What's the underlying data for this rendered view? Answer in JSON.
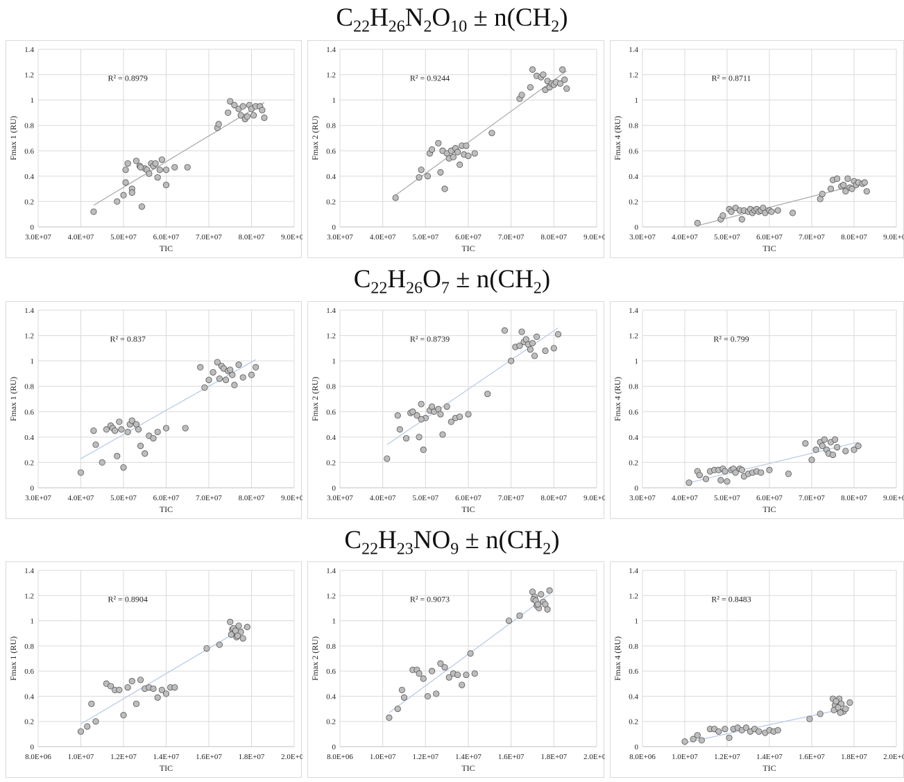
{
  "rows": [
    {
      "formula_parts": [
        "C",
        "22",
        "H",
        "26",
        "N",
        "2",
        "O",
        "10",
        " ± n(CH",
        "2",
        ")"
      ]
    },
    {
      "formula_parts": [
        "C",
        "22",
        "H",
        "26",
        "O",
        "7",
        " ± n(CH",
        "2",
        ")"
      ]
    },
    {
      "formula_parts": [
        "C",
        "22",
        "H",
        "23",
        "NO",
        "9",
        " ± n(CH",
        "2",
        ")"
      ]
    }
  ],
  "chart_data": [
    {
      "type": "scatter",
      "xlabel": "TIC",
      "ylabel": "Fmax 1 (RU)",
      "annotation": "R² = 0.8979",
      "trendline_color": "#a6a6a6",
      "xlim": [
        30000000,
        90000000
      ],
      "ylim": [
        0,
        1.4
      ],
      "xticks": [
        "3.0E+07",
        "4.0E+07",
        "5.0E+07",
        "6.0E+07",
        "7.0E+07",
        "8.0E+07",
        "9.0E+07"
      ],
      "yticks": [
        "0",
        "0.2",
        "0.4",
        "0.6",
        "0.8",
        "1",
        "1.2",
        "1.4"
      ],
      "x": [
        43000000,
        48500000,
        50000000,
        50500000,
        51000000,
        52000000,
        53000000,
        53800000,
        54300000,
        55000000,
        55500000,
        56000000,
        56500000,
        57000000,
        57500000,
        58000000,
        58500000,
        59000000,
        60000000,
        60000000,
        62000000,
        65000000,
        72000000,
        72300000,
        74500000,
        75000000,
        76000000,
        77000000,
        77500000,
        78000000,
        78500000,
        79000000,
        79500000,
        80000000,
        80500000,
        81000000,
        82000000,
        82500000,
        83000000,
        52000000,
        50500000,
        54000000
      ],
      "y": [
        0.12,
        0.2,
        0.25,
        0.45,
        0.5,
        0.3,
        0.52,
        0.48,
        0.16,
        0.46,
        0.45,
        0.42,
        0.5,
        0.48,
        0.5,
        0.39,
        0.45,
        0.53,
        0.33,
        0.45,
        0.47,
        0.47,
        0.78,
        0.81,
        0.9,
        0.99,
        0.96,
        0.93,
        0.88,
        0.95,
        0.85,
        0.87,
        0.96,
        0.93,
        0.88,
        0.95,
        0.95,
        0.92,
        0.86,
        0.27,
        0.35,
        0.47
      ],
      "trend": {
        "x": [
          43000000,
          83000000
        ],
        "y": [
          0.17,
          0.98
        ]
      }
    },
    {
      "type": "scatter",
      "xlabel": "TIC",
      "ylabel": "Fmax 2 (RU)",
      "annotation": "R² = 0.9244",
      "trendline_color": "#a6a6a6",
      "xlim": [
        30000000,
        90000000
      ],
      "ylim": [
        0,
        1.4
      ],
      "xticks": [
        "3.0E+07",
        "4.0E+07",
        "5.0E+07",
        "6.0E+07",
        "7.0E+07",
        "8.0E+07",
        "9.0E+07"
      ],
      "yticks": [
        "0",
        "0.2",
        "0.4",
        "0.6",
        "0.8",
        "1",
        "1.2",
        "1.4"
      ],
      "x": [
        43000000,
        48500000,
        49000000,
        50500000,
        51000000,
        51500000,
        53000000,
        53500000,
        54000000,
        54500000,
        55000000,
        55500000,
        56000000,
        56500000,
        57000000,
        57500000,
        58000000,
        58500000,
        59000000,
        59500000,
        60000000,
        61500000,
        65500000,
        72000000,
        72500000,
        74500000,
        75000000,
        76000000,
        77000000,
        77500000,
        78000000,
        78500000,
        79000000,
        79500000,
        80000000,
        80500000,
        81500000,
        82000000,
        82500000,
        83000000
      ],
      "y": [
        0.23,
        0.39,
        0.45,
        0.4,
        0.58,
        0.61,
        0.66,
        0.43,
        0.6,
        0.3,
        0.58,
        0.54,
        0.6,
        0.55,
        0.62,
        0.59,
        0.49,
        0.64,
        0.57,
        0.64,
        0.56,
        0.58,
        0.74,
        1.01,
        1.04,
        1.1,
        1.24,
        1.19,
        1.18,
        1.2,
        1.08,
        1.15,
        1.1,
        1.13,
        1.12,
        1.14,
        1.13,
        1.24,
        1.16,
        1.09
      ],
      "trend": {
        "x": [
          43000000,
          83000000
        ],
        "y": [
          0.25,
          1.23
        ]
      }
    },
    {
      "type": "scatter",
      "xlabel": "TIC",
      "ylabel": "Fmax 4 (RU)",
      "annotation": "R² = 0.8711",
      "trendline_color": "#a6a6a6",
      "xlim": [
        30000000,
        90000000
      ],
      "ylim": [
        0,
        1.4
      ],
      "xticks": [
        "3.0E+07",
        "4.0E+07",
        "5.0E+07",
        "6.0E+07",
        "7.0E+07",
        "8.0E+07",
        "9.0E+07"
      ],
      "yticks": [
        "0",
        "0.2",
        "0.4",
        "0.6",
        "0.8",
        "1",
        "1.2",
        "1.4"
      ],
      "x": [
        43000000,
        48500000,
        49000000,
        50500000,
        51000000,
        52000000,
        53000000,
        53500000,
        54000000,
        55000000,
        55500000,
        56000000,
        56500000,
        57000000,
        57500000,
        58000000,
        58500000,
        59000000,
        60000000,
        60500000,
        62000000,
        65500000,
        72000000,
        72500000,
        74500000,
        75000000,
        76000000,
        77000000,
        77500000,
        78000000,
        78500000,
        79000000,
        79500000,
        80000000,
        80500000,
        81000000,
        82000000,
        82500000,
        83000000
      ],
      "y": [
        0.03,
        0.06,
        0.09,
        0.14,
        0.12,
        0.15,
        0.13,
        0.06,
        0.13,
        0.12,
        0.14,
        0.11,
        0.13,
        0.14,
        0.12,
        0.13,
        0.15,
        0.11,
        0.13,
        0.12,
        0.13,
        0.11,
        0.22,
        0.26,
        0.3,
        0.37,
        0.38,
        0.32,
        0.33,
        0.28,
        0.38,
        0.31,
        0.3,
        0.36,
        0.33,
        0.35,
        0.34,
        0.35,
        0.28
      ],
      "trend": {
        "x": [
          43000000,
          83000000
        ],
        "y": [
          0.01,
          0.35
        ]
      }
    },
    {
      "type": "scatter",
      "xlabel": "TIC",
      "ylabel": "Fmax 1 (RU)",
      "annotation": "R² = 0.837",
      "trendline_color": "#b4c7e7",
      "xlim": [
        30000000,
        90000000
      ],
      "ylim": [
        0,
        1.4
      ],
      "xticks": [
        "3.0E+07",
        "4.0E+07",
        "5.0E+07",
        "6.0E+07",
        "7.0E+07",
        "8.0E+07",
        "9.0E+07"
      ],
      "yticks": [
        "0",
        "0.2",
        "0.4",
        "0.6",
        "0.8",
        "1",
        "1.2",
        "1.4"
      ],
      "x": [
        40000000,
        43000000,
        43500000,
        45000000,
        46000000,
        47000000,
        47500000,
        48000000,
        48500000,
        49000000,
        49500000,
        50000000,
        51000000,
        51500000,
        52000000,
        53000000,
        53500000,
        54000000,
        55000000,
        56000000,
        57000000,
        58000000,
        60000000,
        64500000,
        68000000,
        69000000,
        70000000,
        71000000,
        72000000,
        72500000,
        73000000,
        73500000,
        74000000,
        74500000,
        75000000,
        75500000,
        76000000,
        77000000,
        78000000,
        80000000,
        81000000
      ],
      "y": [
        0.12,
        0.45,
        0.34,
        0.2,
        0.46,
        0.49,
        0.47,
        0.45,
        0.25,
        0.52,
        0.46,
        0.16,
        0.44,
        0.5,
        0.53,
        0.5,
        0.46,
        0.33,
        0.27,
        0.41,
        0.39,
        0.44,
        0.47,
        0.47,
        0.95,
        0.79,
        0.85,
        0.91,
        0.99,
        0.86,
        0.96,
        0.94,
        0.85,
        0.92,
        0.93,
        0.89,
        0.81,
        0.97,
        0.87,
        0.89,
        0.95
      ],
      "trend": {
        "x": [
          40000000,
          81000000
        ],
        "y": [
          0.23,
          1.01
        ]
      }
    },
    {
      "type": "scatter",
      "xlabel": "TIC",
      "ylabel": "Fmax 2 (RU)",
      "annotation": "R² = 0.8739",
      "trendline_color": "#b4c7e7",
      "xlim": [
        30000000,
        90000000
      ],
      "ylim": [
        0,
        1.4
      ],
      "xticks": [
        "3.0E+07",
        "4.0E+07",
        "5.0E+07",
        "6.0E+07",
        "7.0E+07",
        "8.0E+07",
        "9.0E+07"
      ],
      "yticks": [
        "0",
        "0.2",
        "0.4",
        "0.6",
        "0.8",
        "1",
        "1.2",
        "1.4"
      ],
      "x": [
        41000000,
        43500000,
        44000000,
        45500000,
        46500000,
        47000000,
        48000000,
        48500000,
        49000000,
        49500000,
        50000000,
        51000000,
        51500000,
        52000000,
        53000000,
        53500000,
        54000000,
        55000000,
        56000000,
        57000000,
        58000000,
        60000000,
        64500000,
        68500000,
        70000000,
        71000000,
        72000000,
        72500000,
        73000000,
        73500000,
        74000000,
        74500000,
        75000000,
        75500000,
        76000000,
        78000000,
        80000000,
        81000000,
        49000000
      ],
      "y": [
        0.23,
        0.57,
        0.46,
        0.39,
        0.59,
        0.6,
        0.57,
        0.4,
        0.66,
        0.3,
        0.55,
        0.61,
        0.64,
        0.6,
        0.62,
        0.58,
        0.42,
        0.64,
        0.52,
        0.55,
        0.56,
        0.58,
        0.74,
        1.24,
        1.0,
        1.11,
        1.12,
        1.23,
        1.15,
        1.17,
        1.13,
        1.09,
        1.14,
        1.04,
        1.19,
        1.08,
        1.1,
        1.21,
        0.54
      ],
      "trend": {
        "x": [
          41000000,
          81000000
        ],
        "y": [
          0.34,
          1.26
        ]
      }
    },
    {
      "type": "scatter",
      "xlabel": "TIC",
      "ylabel": "Fmax 4 (RU)",
      "annotation": "R² = 0.799",
      "trendline_color": "#b4c7e7",
      "xlim": [
        30000000,
        90000000
      ],
      "ylim": [
        0,
        1.4
      ],
      "xticks": [
        "3.0E+07",
        "4.0E+07",
        "5.0E+07",
        "6.0E+07",
        "7.0E+07",
        "8.0E+07",
        "9.0E+07"
      ],
      "yticks": [
        "0",
        "0.2",
        "0.4",
        "0.6",
        "0.8",
        "1",
        "1.2",
        "1.4"
      ],
      "x": [
        41000000,
        43000000,
        43500000,
        45000000,
        46000000,
        47000000,
        48000000,
        48500000,
        49000000,
        49500000,
        50000000,
        51000000,
        51500000,
        52000000,
        53000000,
        53500000,
        54000000,
        55000000,
        56000000,
        57000000,
        58000000,
        60000000,
        64500000,
        68500000,
        70000000,
        71000000,
        72000000,
        72500000,
        73000000,
        73500000,
        74000000,
        74500000,
        75000000,
        75500000,
        76000000,
        78000000,
        80000000,
        81000000
      ],
      "y": [
        0.04,
        0.13,
        0.1,
        0.07,
        0.13,
        0.14,
        0.14,
        0.06,
        0.15,
        0.13,
        0.05,
        0.14,
        0.15,
        0.12,
        0.15,
        0.14,
        0.09,
        0.11,
        0.12,
        0.13,
        0.12,
        0.14,
        0.11,
        0.35,
        0.22,
        0.3,
        0.36,
        0.33,
        0.38,
        0.3,
        0.27,
        0.36,
        0.26,
        0.38,
        0.32,
        0.29,
        0.3,
        0.33
      ],
      "trend": {
        "x": [
          41000000,
          81000000
        ],
        "y": [
          0.04,
          0.36
        ]
      }
    },
    {
      "type": "scatter",
      "xlabel": "TIC",
      "ylabel": "Fmax 1 (RU)",
      "annotation": "R² = 0.8904",
      "trendline_color": "#b4c7e7",
      "xlim": [
        8000000,
        20000000
      ],
      "ylim": [
        0,
        1.4
      ],
      "xticks": [
        "8.0E+06",
        "1.0E+07",
        "1.2E+07",
        "1.4E+07",
        "1.6E+07",
        "1.8E+07",
        "2.0E+07"
      ],
      "yticks": [
        "0",
        "0.2",
        "0.4",
        "0.6",
        "0.8",
        "1",
        "1.2",
        "1.4"
      ],
      "x": [
        10000000,
        10300000,
        10500000,
        10700000,
        11200000,
        11400000,
        11600000,
        11800000,
        12000000,
        12200000,
        12400000,
        12600000,
        12800000,
        13000000,
        13200000,
        13400000,
        13600000,
        13800000,
        14000000,
        14200000,
        14400000,
        15900000,
        16500000,
        17000000,
        17100000,
        17200000,
        17300000,
        17400000,
        17500000,
        17600000,
        17800000,
        17050000,
        17150000,
        17250000,
        17350000
      ],
      "y": [
        0.12,
        0.16,
        0.34,
        0.2,
        0.5,
        0.48,
        0.45,
        0.45,
        0.25,
        0.47,
        0.52,
        0.34,
        0.53,
        0.46,
        0.47,
        0.46,
        0.39,
        0.45,
        0.42,
        0.47,
        0.47,
        0.78,
        0.81,
        0.99,
        0.93,
        0.9,
        0.87,
        0.96,
        0.91,
        0.86,
        0.95,
        0.89,
        0.94,
        0.92,
        0.88
      ],
      "trend": {
        "x": [
          10000000,
          17800000
        ],
        "y": [
          0.18,
          0.96
        ]
      }
    },
    {
      "type": "scatter",
      "xlabel": "TIC",
      "ylabel": "Fmax 2 (RU)",
      "annotation": "R² = 0.9073",
      "trendline_color": "#b4c7e7",
      "xlim": [
        8000000,
        20000000
      ],
      "ylim": [
        0,
        1.4
      ],
      "xticks": [
        "8.0E+06",
        "1.0E+07",
        "1.2E+07",
        "1.4E+07",
        "1.6E+07",
        "1.8E+07",
        "2.0E+07"
      ],
      "yticks": [
        "0",
        "0.2",
        "0.4",
        "0.6",
        "0.8",
        "1",
        "1.2",
        "1.4"
      ],
      "x": [
        10300000,
        10700000,
        10900000,
        11000000,
        11400000,
        11600000,
        11700000,
        11900000,
        12100000,
        12300000,
        12500000,
        12700000,
        12900000,
        13100000,
        13300000,
        13500000,
        13700000,
        13900000,
        14100000,
        14300000,
        15900000,
        16400000,
        17000000,
        17100000,
        17200000,
        17300000,
        17400000,
        17500000,
        17600000,
        17700000,
        17800000,
        17050000,
        17150000,
        17250000
      ],
      "y": [
        0.23,
        0.3,
        0.45,
        0.39,
        0.61,
        0.61,
        0.58,
        0.54,
        0.4,
        0.6,
        0.42,
        0.66,
        0.63,
        0.55,
        0.58,
        0.57,
        0.49,
        0.57,
        0.74,
        0.58,
        1.0,
        1.04,
        1.23,
        1.19,
        1.12,
        1.1,
        1.21,
        1.15,
        1.13,
        1.09,
        1.24,
        1.17,
        1.16,
        1.13
      ],
      "trend": {
        "x": [
          10300000,
          17800000
        ],
        "y": [
          0.27,
          1.21
        ]
      }
    },
    {
      "type": "scatter",
      "xlabel": "TIC",
      "ylabel": "Fmax 4 (RU)",
      "annotation": "R² = 0.8483",
      "trendline_color": "#b4c7e7",
      "xlim": [
        8000000,
        20000000
      ],
      "ylim": [
        0,
        1.4
      ],
      "xticks": [
        "8.0E+06",
        "1.0E+07",
        "1.2E+07",
        "1.4E+07",
        "1.6E+07",
        "1.8E+07",
        "2.0E+07"
      ],
      "yticks": [
        "0",
        "0.2",
        "0.4",
        "0.6",
        "0.8",
        "1",
        "1.2",
        "1.4"
      ],
      "x": [
        10000000,
        10400000,
        10600000,
        10800000,
        11200000,
        11400000,
        11600000,
        11900000,
        12100000,
        12300000,
        12500000,
        12700000,
        12900000,
        13100000,
        13300000,
        13500000,
        13800000,
        14000000,
        14200000,
        14400000,
        15900000,
        16400000,
        17000000,
        17100000,
        17200000,
        17300000,
        17400000,
        17500000,
        17600000,
        17800000,
        17050000,
        17150000,
        17250000,
        17350000
      ],
      "y": [
        0.04,
        0.06,
        0.09,
        0.05,
        0.14,
        0.14,
        0.12,
        0.14,
        0.07,
        0.14,
        0.15,
        0.13,
        0.15,
        0.12,
        0.14,
        0.12,
        0.11,
        0.13,
        0.12,
        0.13,
        0.22,
        0.26,
        0.38,
        0.33,
        0.3,
        0.38,
        0.34,
        0.28,
        0.3,
        0.35,
        0.29,
        0.36,
        0.31,
        0.27
      ],
      "trend": {
        "x": [
          10000000,
          17800000
        ],
        "y": [
          0.03,
          0.31
        ]
      }
    }
  ]
}
